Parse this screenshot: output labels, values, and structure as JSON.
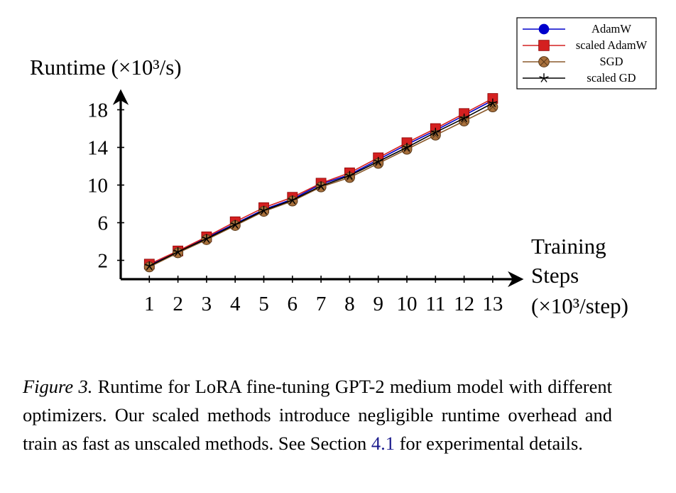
{
  "chart_data": {
    "type": "line",
    "title": "",
    "ylabel": "Runtime (×10³/s)",
    "xlabel": [
      "Training",
      "Steps",
      "(×10³/step)"
    ],
    "xlim": [
      0,
      13.6
    ],
    "ylim": [
      0,
      20
    ],
    "x_ticks": [
      1,
      2,
      3,
      4,
      5,
      6,
      7,
      8,
      9,
      10,
      11,
      12,
      13
    ],
    "y_ticks": [
      2,
      6,
      10,
      14,
      18
    ],
    "legend_position": "top-right",
    "x": [
      1,
      2,
      3,
      4,
      5,
      6,
      7,
      8,
      9,
      10,
      11,
      12,
      13
    ],
    "series": [
      {
        "name": "AdamW",
        "color": "#0000cc",
        "marker": "circle",
        "values": [
          1.5,
          3.0,
          4.4,
          5.9,
          7.4,
          8.5,
          10.1,
          11.1,
          12.7,
          14.3,
          15.8,
          17.4,
          19.0
        ]
      },
      {
        "name": "scaled AdamW",
        "color": "#d42020",
        "marker": "square",
        "values": [
          1.6,
          3.0,
          4.5,
          6.1,
          7.6,
          8.7,
          10.2,
          11.3,
          12.9,
          14.5,
          16.0,
          17.6,
          19.2
        ]
      },
      {
        "name": "SGD",
        "color": "#8b5a2b",
        "marker": "otimes",
        "values": [
          1.3,
          2.8,
          4.2,
          5.7,
          7.2,
          8.3,
          9.8,
          10.8,
          12.3,
          13.8,
          15.3,
          16.8,
          18.3
        ]
      },
      {
        "name": "scaled GD",
        "color": "#000000",
        "marker": "star",
        "values": [
          1.4,
          2.9,
          4.3,
          5.8,
          7.3,
          8.4,
          9.9,
          11.0,
          12.5,
          14.0,
          15.6,
          17.1,
          18.7
        ]
      }
    ]
  },
  "caption": {
    "label": "Figure 3.",
    "text_before_ref": " Runtime for LoRA fine-tuning GPT-2 medium model with different optimizers. Our scaled methods introduce negligible runtime overhead and train as fast as unscaled methods. See Section ",
    "ref": "4.1",
    "text_after_ref": " for experimental details."
  }
}
